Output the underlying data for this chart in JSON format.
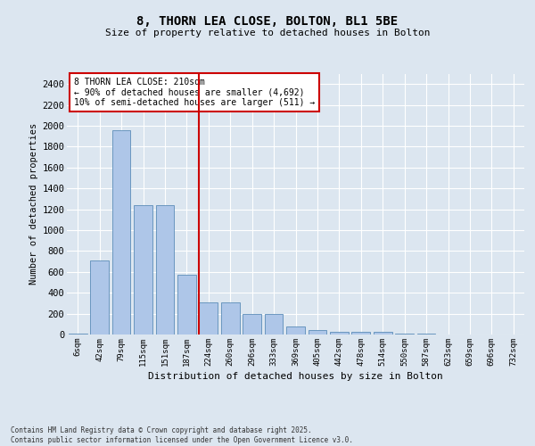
{
  "title": "8, THORN LEA CLOSE, BOLTON, BL1 5BE",
  "subtitle": "Size of property relative to detached houses in Bolton",
  "xlabel": "Distribution of detached houses by size in Bolton",
  "ylabel": "Number of detached properties",
  "bar_color": "#aec6e8",
  "bar_edge_color": "#5b8db8",
  "background_color": "#dce6f0",
  "grid_color": "#ffffff",
  "vline_color": "#cc0000",
  "vline_index": 6,
  "annotation_text": "8 THORN LEA CLOSE: 210sqm\n← 90% of detached houses are smaller (4,692)\n10% of semi-detached houses are larger (511) →",
  "annotation_box_color": "#ffffff",
  "annotation_box_edge": "#cc0000",
  "ylim": [
    0,
    2500
  ],
  "yticks": [
    0,
    200,
    400,
    600,
    800,
    1000,
    1200,
    1400,
    1600,
    1800,
    2000,
    2200,
    2400
  ],
  "categories": [
    "6sqm",
    "42sqm",
    "79sqm",
    "115sqm",
    "151sqm",
    "187sqm",
    "224sqm",
    "260sqm",
    "296sqm",
    "333sqm",
    "369sqm",
    "405sqm",
    "442sqm",
    "478sqm",
    "514sqm",
    "550sqm",
    "587sqm",
    "623sqm",
    "659sqm",
    "696sqm",
    "732sqm"
  ],
  "values": [
    10,
    710,
    1960,
    1240,
    1240,
    575,
    305,
    305,
    200,
    200,
    75,
    40,
    28,
    28,
    28,
    10,
    5,
    2,
    2,
    1,
    1
  ],
  "footer": "Contains HM Land Registry data © Crown copyright and database right 2025.\nContains public sector information licensed under the Open Government Licence v3.0."
}
